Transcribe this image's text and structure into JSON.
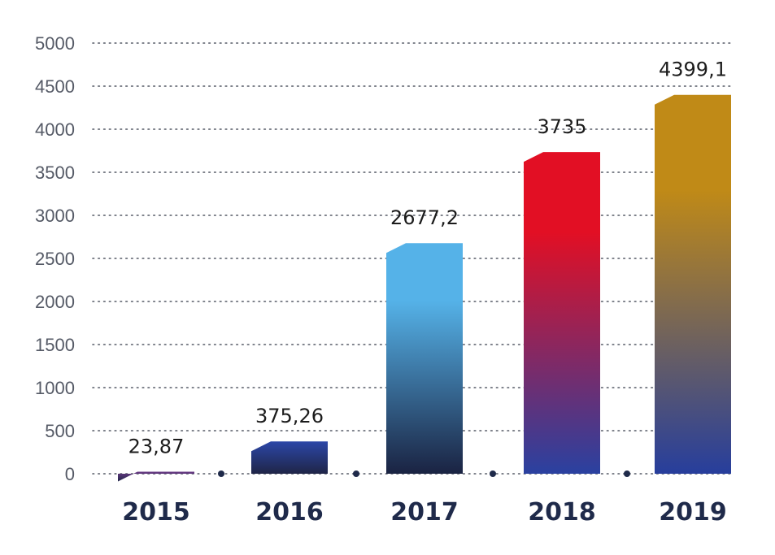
{
  "chart_data": {
    "type": "bar",
    "categories": [
      "2015",
      "2016",
      "2017",
      "2018",
      "2019"
    ],
    "values": [
      23.87,
      375.26,
      2677.2,
      3735,
      4399.1
    ],
    "data_labels": [
      "23,87",
      "375,26",
      "2677,2",
      "3735",
      "4399,1"
    ],
    "yticks": [
      "0",
      "500",
      "1000",
      "1500",
      "2000",
      "2500",
      "3000",
      "3500",
      "4000",
      "4500",
      "5000"
    ],
    "ylim": [
      0,
      5000
    ],
    "grid": "dotted-horizontal",
    "title": "",
    "xlabel": "",
    "ylabel": "",
    "colors": {
      "grid": "#555a66",
      "axis_text": "#555a66",
      "category_text": "#1f2a4a",
      "separator_dot": "#1f2a4a",
      "bar_gradients": [
        [
          "#6a3a86",
          "#1f2547"
        ],
        [
          "#2c47a8",
          "#1f2547"
        ],
        [
          "#55b2e8",
          "#1a2342"
        ],
        [
          "#e20f24",
          "#2a41a0"
        ],
        [
          "#c08a17",
          "#273e9c"
        ]
      ]
    }
  }
}
